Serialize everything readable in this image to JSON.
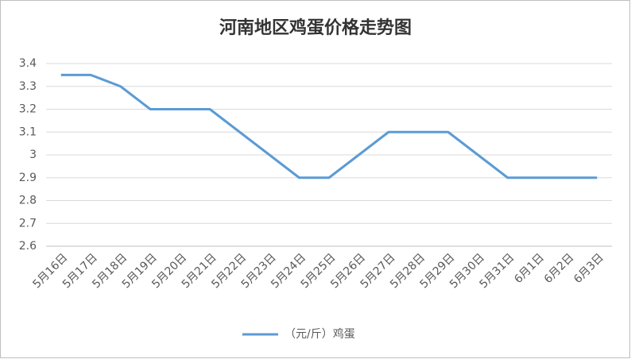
{
  "chart_data": {
    "type": "line",
    "title": "河南地区鸡蛋价格走势图",
    "categories": [
      "5月16日",
      "5月17日",
      "5月18日",
      "5月19日",
      "5月20日",
      "5月21日",
      "5月22日",
      "5月23日",
      "5月24日",
      "5月25日",
      "5月26日",
      "5月27日",
      "5月28日",
      "5月29日",
      "5月30日",
      "5月31日",
      "6月1日",
      "6月2日",
      "6月3日"
    ],
    "series": [
      {
        "name": "（元/斤）鸡蛋",
        "color": "#5b9bd5",
        "values": [
          3.35,
          3.35,
          3.3,
          3.2,
          3.2,
          3.2,
          3.1,
          3.0,
          2.9,
          2.9,
          3.0,
          3.1,
          3.1,
          3.1,
          3.0,
          2.9,
          2.9,
          2.9,
          2.9
        ]
      }
    ],
    "ylim": [
      2.6,
      3.4
    ],
    "yticks": [
      2.6,
      2.7,
      2.8,
      2.9,
      3,
      3.1,
      3.2,
      3.3,
      3.4
    ],
    "grid": true
  }
}
